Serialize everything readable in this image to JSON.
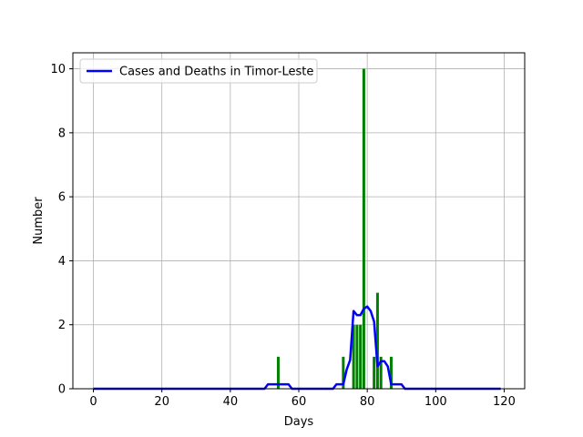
{
  "chart_data": {
    "type": "bar+line",
    "title": "",
    "xlabel": "Days",
    "ylabel": "Number",
    "xlim": [
      -6,
      126
    ],
    "ylim": [
      0,
      10.5
    ],
    "xticks": [
      0,
      20,
      40,
      60,
      80,
      100,
      120
    ],
    "yticks": [
      0,
      2,
      4,
      6,
      8,
      10
    ],
    "grid": true,
    "legend_position": "top-left",
    "bars": {
      "color": "#008000",
      "points": [
        {
          "x": 54,
          "y": 1
        },
        {
          "x": 73,
          "y": 1
        },
        {
          "x": 76,
          "y": 2
        },
        {
          "x": 77,
          "y": 2
        },
        {
          "x": 78,
          "y": 2
        },
        {
          "x": 79,
          "y": 10
        },
        {
          "x": 82,
          "y": 1
        },
        {
          "x": 83,
          "y": 3
        },
        {
          "x": 84,
          "y": 1
        },
        {
          "x": 87,
          "y": 1
        }
      ]
    },
    "series": [
      {
        "name": "Cases and Deaths in Timor-Leste",
        "color": "#0000ff",
        "x": [
          0,
          50,
          51,
          52,
          53,
          54,
          55,
          56,
          57,
          58,
          70,
          71,
          72,
          73,
          74,
          75,
          76,
          77,
          78,
          79,
          80,
          81,
          82,
          83,
          84,
          85,
          86,
          87,
          88,
          89,
          90,
          91,
          119
        ],
        "y": [
          0,
          0,
          0.14,
          0.14,
          0.14,
          0.14,
          0.14,
          0.14,
          0.14,
          0,
          0,
          0.14,
          0.14,
          0.14,
          0.6,
          0.9,
          2.43,
          2.3,
          2.3,
          2.5,
          2.57,
          2.43,
          2.1,
          0.7,
          0.86,
          0.86,
          0.7,
          0.14,
          0.14,
          0.14,
          0.14,
          0,
          0
        ]
      }
    ]
  }
}
